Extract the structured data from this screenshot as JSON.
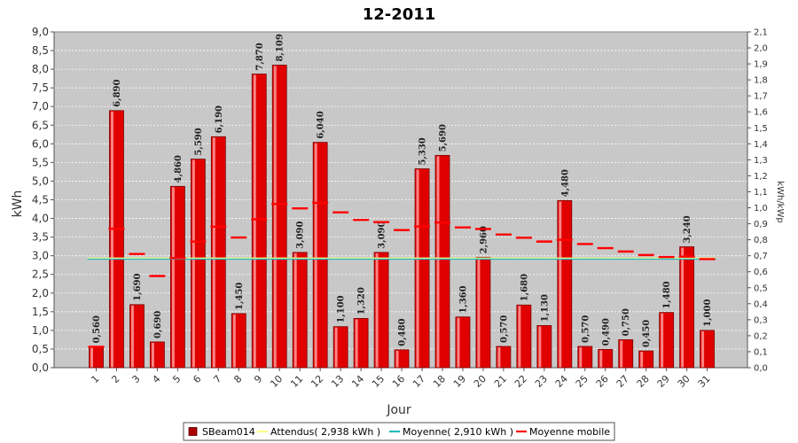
{
  "chart_data": {
    "type": "bar",
    "title": "12-2011",
    "xlabel": "Jour",
    "ylabel": "kWh",
    "y2label": "kWh/kWp",
    "ylim": [
      0,
      9.0
    ],
    "y2lim": [
      0,
      2.1
    ],
    "y_ticks": [
      "0,0",
      "0,5",
      "1,0",
      "1,5",
      "2,0",
      "2,5",
      "3,0",
      "3,5",
      "4,0",
      "4,5",
      "5,0",
      "5,5",
      "6,0",
      "6,5",
      "7,0",
      "7,5",
      "8,0",
      "8,5",
      "9,0"
    ],
    "y2_ticks": [
      "0,0",
      "0,1",
      "0,2",
      "0,3",
      "0,4",
      "0,5",
      "0,6",
      "0,7",
      "0,8",
      "0,9",
      "1,0",
      "1,1",
      "1,2",
      "1,3",
      "1,4",
      "1,5",
      "1,6",
      "1,7",
      "1,8",
      "1,9",
      "2,0",
      "2,1"
    ],
    "categories": [
      "1",
      "2",
      "3",
      "4",
      "5",
      "6",
      "7",
      "8",
      "9",
      "10",
      "11",
      "12",
      "13",
      "14",
      "15",
      "16",
      "17",
      "18",
      "19",
      "20",
      "21",
      "22",
      "23",
      "24",
      "25",
      "26",
      "27",
      "28",
      "29",
      "30",
      "31"
    ],
    "series": [
      {
        "name": "SBeam014",
        "type": "bar",
        "color": "#e00000",
        "values": [
          0.56,
          6.89,
          1.69,
          0.69,
          4.86,
          5.59,
          6.19,
          1.45,
          7.87,
          8.109,
          3.09,
          6.04,
          1.1,
          1.32,
          3.09,
          0.48,
          5.33,
          5.69,
          1.36,
          2.96,
          0.57,
          1.68,
          1.13,
          4.48,
          0.57,
          0.49,
          0.75,
          0.45,
          1.48,
          3.24,
          1.0
        ],
        "labels": [
          "0,560",
          "6,890",
          "1,690",
          "0,690",
          "4,860",
          "5,590",
          "6,190",
          "1,450",
          "7,870",
          "8,109",
          "3,090",
          "6,040",
          "1,100",
          "1,320",
          "3,090",
          "0,480",
          "5,330",
          "5,690",
          "1,360",
          "2,960",
          "0,570",
          "1,680",
          "1,130",
          "4,480",
          "0,570",
          "0,490",
          "0,750",
          "0,450",
          "1,480",
          "3,240",
          "1,000"
        ]
      },
      {
        "name": "Attendus( 2,938 kWh )",
        "type": "line",
        "color": "#ffff88",
        "value": 2.938
      },
      {
        "name": "Moyenne( 2,910 kWh )",
        "type": "line",
        "color": "#22bbbb",
        "value": 2.91
      },
      {
        "name": "Moyenne mobile",
        "type": "segments",
        "color": "#ff0000",
        "values": [
          0.56,
          3.725,
          3.047,
          2.458,
          2.938,
          3.38,
          3.781,
          3.49,
          3.976,
          4.389,
          4.271,
          4.419,
          4.164,
          3.961,
          3.903,
          3.689,
          3.786,
          3.892,
          3.759,
          3.719,
          3.569,
          3.483,
          3.381,
          3.427,
          3.313,
          3.205,
          3.114,
          3.019,
          2.966,
          2.975,
          2.91
        ]
      }
    ],
    "grid": true,
    "legend": "bottom"
  }
}
